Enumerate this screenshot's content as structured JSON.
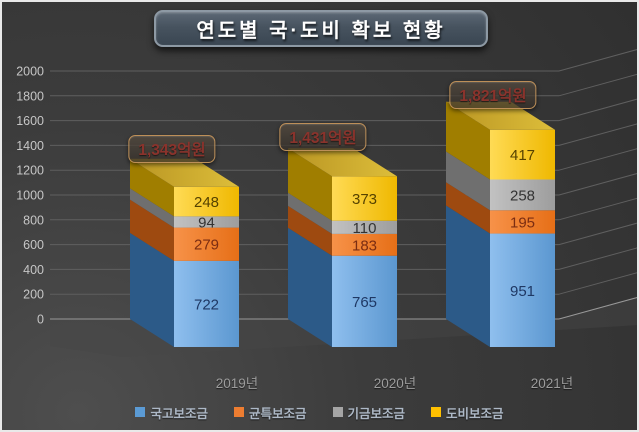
{
  "title": "연도별 국·도비 확보 현황",
  "chart_data": {
    "type": "bar",
    "variant": "3d-stacked-column",
    "title": "연도별 국·도비 확보 현황",
    "categories": [
      "2019년",
      "2020년",
      "2021년"
    ],
    "series": [
      {
        "name": "국고보조금",
        "color": "#5B9BD5",
        "values": [
          722,
          765,
          951
        ]
      },
      {
        "name": "균특보조금",
        "color": "#ED7D31",
        "values": [
          279,
          183,
          195
        ]
      },
      {
        "name": "기금보조금",
        "color": "#A5A5A5",
        "values": [
          94,
          110,
          258
        ]
      },
      {
        "name": "도비보조금",
        "color": "#FFC000",
        "values": [
          248,
          373,
          417
        ]
      }
    ],
    "totals": [
      {
        "label": "1,343억원",
        "value": 1343
      },
      {
        "label": "1,431억원",
        "value": 1431
      },
      {
        "label": "1,821억원",
        "value": 1821
      }
    ],
    "y_ticks": [
      "0",
      "200",
      "400",
      "600",
      "800",
      "1000",
      "1200",
      "1400",
      "1600",
      "1800",
      "2000"
    ],
    "ylim": [
      0,
      2000
    ],
    "unit": "억원",
    "grid": true,
    "legend_position": "bottom",
    "legend": [
      "국고보조금",
      "균특보조금",
      "기금보조금",
      "도비보조금"
    ]
  }
}
